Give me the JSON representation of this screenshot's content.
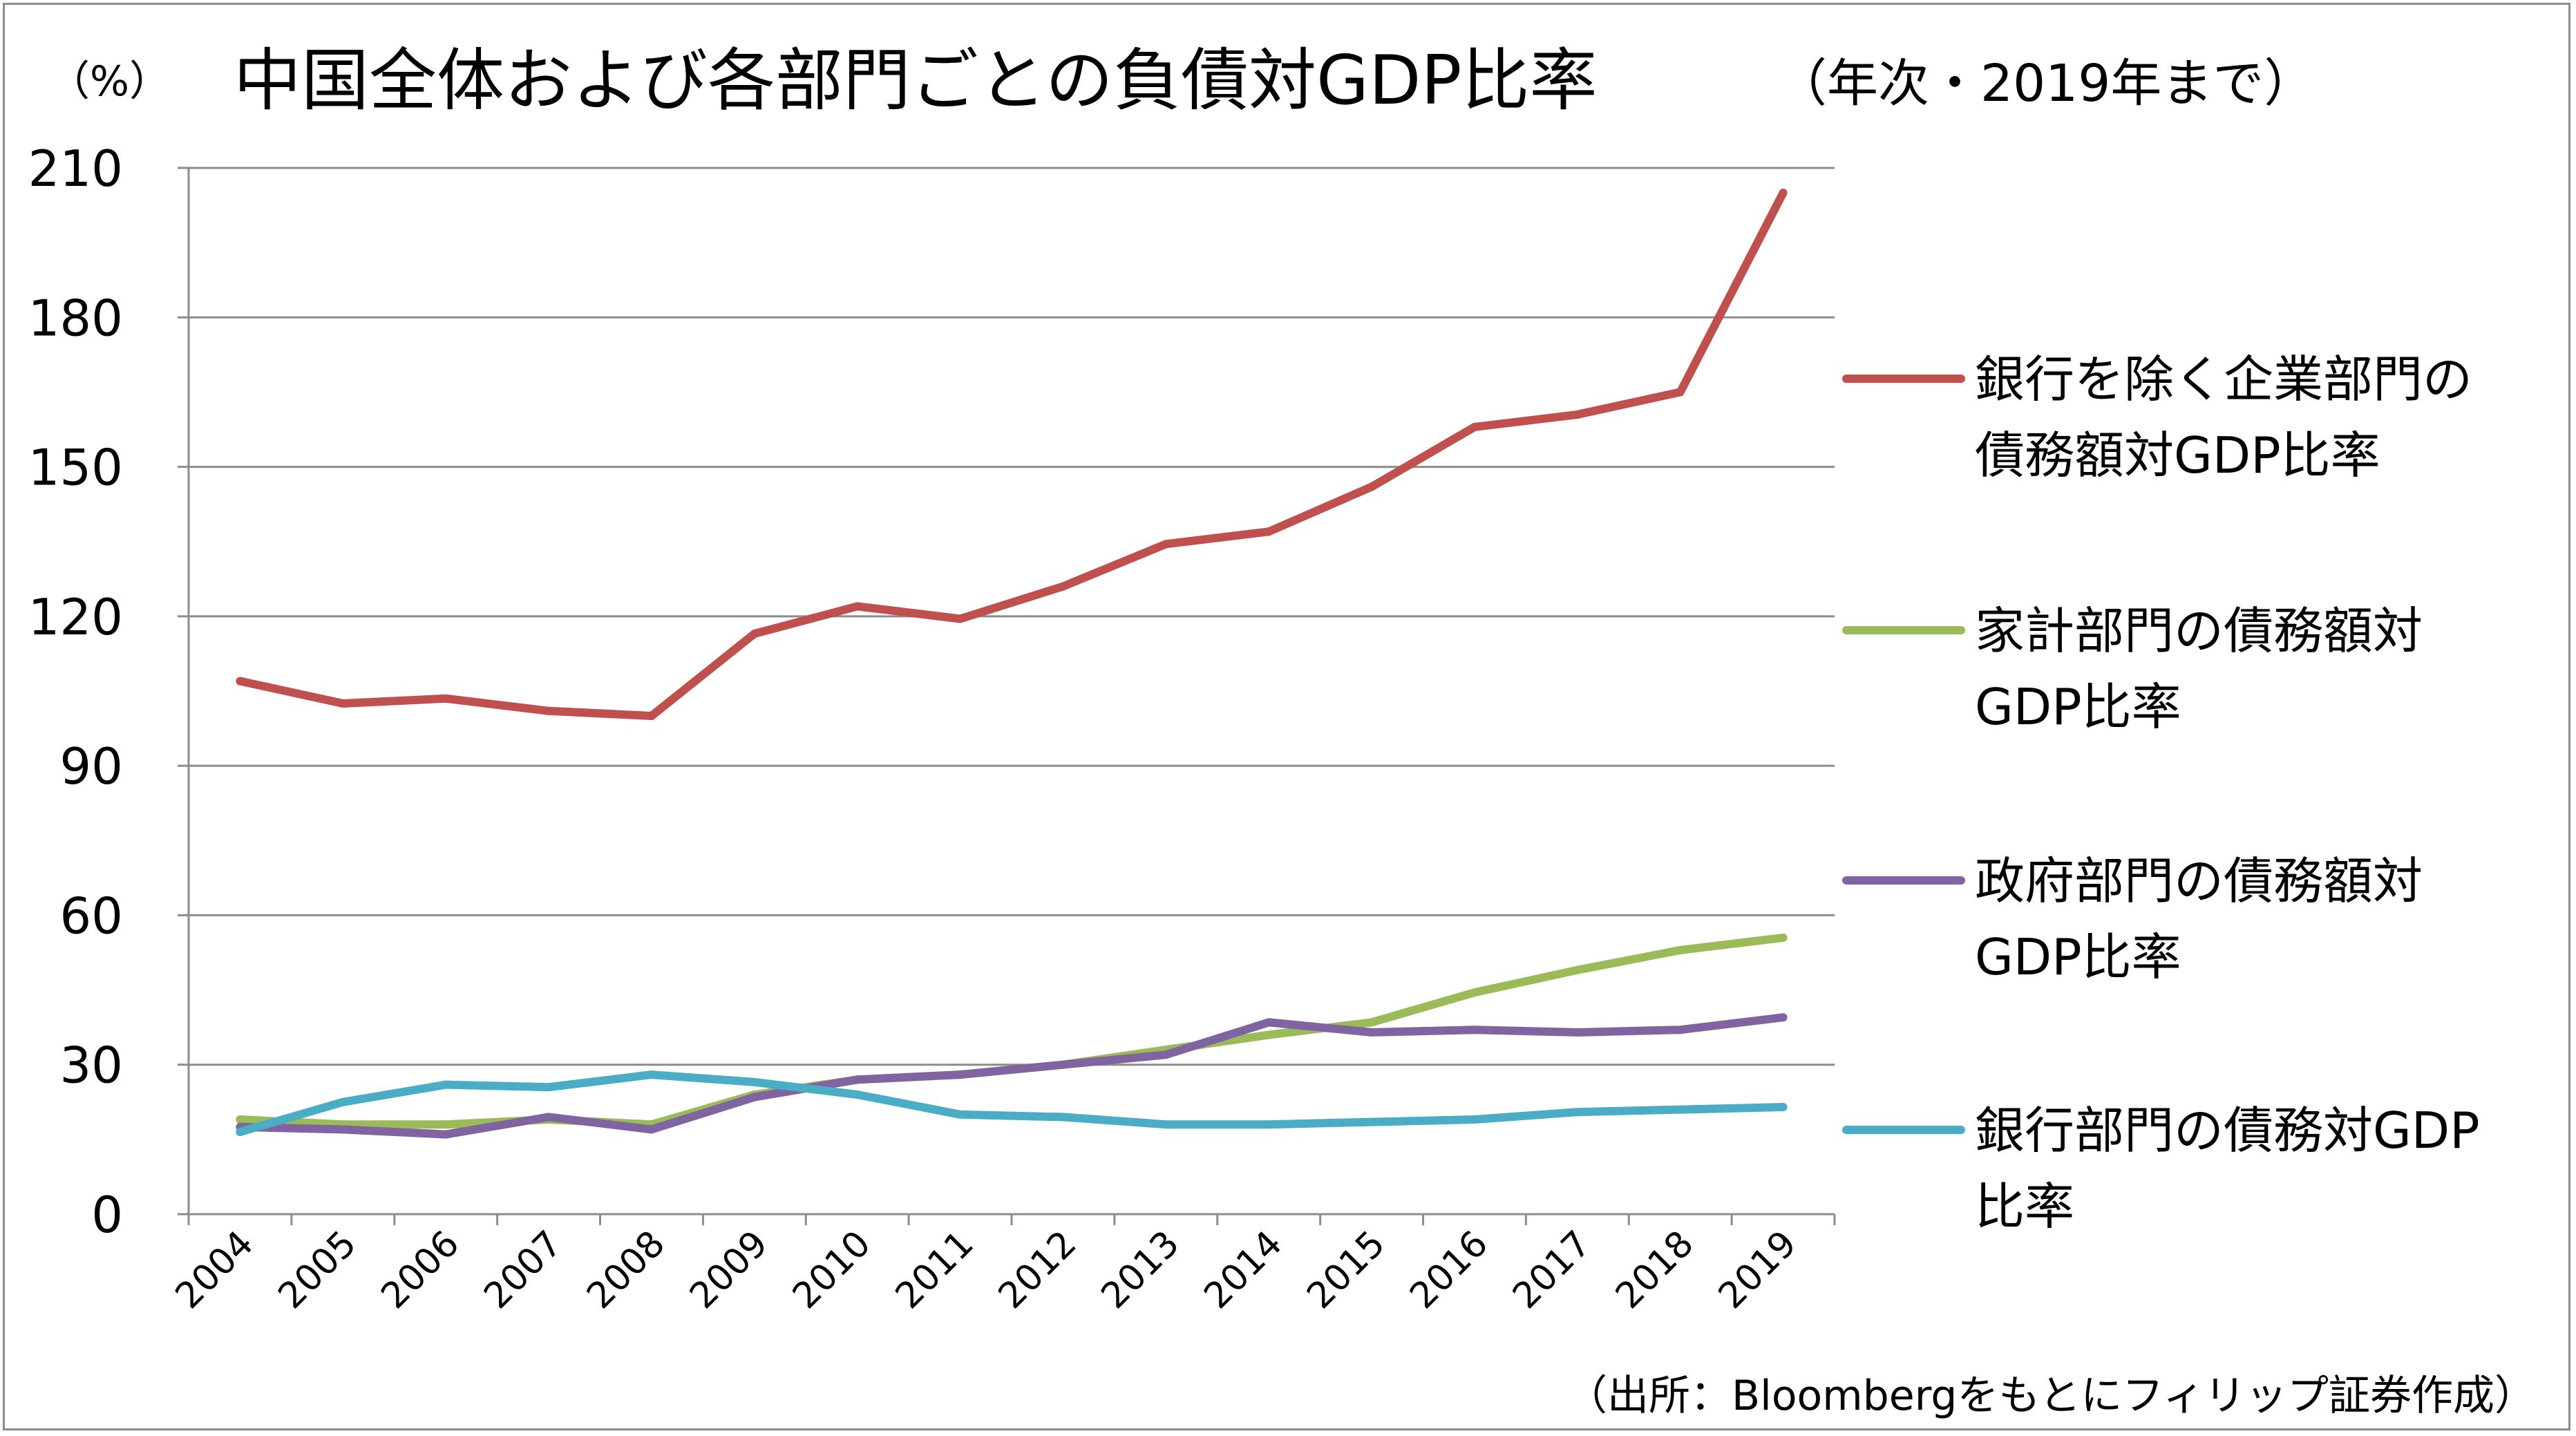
{
  "chart_data": {
    "type": "line",
    "title": "中国全体および各部門ごとの負債対GDP比率",
    "subtitle": "（年次・2019年まで）",
    "unit_label": "（%）",
    "ylim": [
      0,
      210
    ],
    "yticks": [
      "210",
      "180",
      "150",
      "120",
      "90",
      "60",
      "30",
      "0"
    ],
    "ytick_values": [
      210,
      180,
      150,
      120,
      90,
      60,
      30,
      0
    ],
    "categories": [
      "2004",
      "2005",
      "2006",
      "2007",
      "2008",
      "2009",
      "2010",
      "2011",
      "2012",
      "2013",
      "2014",
      "2015",
      "2016",
      "2017",
      "2018",
      "2019"
    ],
    "grid": true,
    "legend_position": "right",
    "series": [
      {
        "name_lines": [
          "銀行を除く企業部門の",
          "債務額対GDP比率"
        ],
        "color": "#c0504d",
        "values": [
          107,
          102.5,
          103.5,
          101,
          100,
          116.5,
          122,
          119.5,
          126,
          134.5,
          137,
          146,
          158,
          160.5,
          165,
          205
        ]
      },
      {
        "name_lines": [
          "家計部門の債務額対",
          "GDP比率"
        ],
        "color": "#9bbb59",
        "values": [
          19,
          18,
          18,
          19,
          18,
          24,
          27,
          28,
          30,
          33,
          36,
          38.5,
          44.5,
          49,
          53,
          55.5
        ]
      },
      {
        "name_lines": [
          "政府部門の債務額対",
          "GDP比率"
        ],
        "color": "#8064a2",
        "values": [
          17.5,
          17,
          16,
          19.5,
          17,
          23.5,
          27,
          28,
          30,
          32,
          38.5,
          36.5,
          37,
          36.5,
          37,
          39.5
        ]
      },
      {
        "name_lines": [
          "銀行部門の債務対GDP",
          "比率"
        ],
        "color": "#4bacc6",
        "values": [
          16.5,
          22.5,
          26,
          25.5,
          28,
          26.5,
          24,
          20,
          19.5,
          18,
          18,
          18.5,
          19,
          20.5,
          21,
          21.5
        ]
      }
    ],
    "source": "（出所：Bloombergをもとにフィリップ証券作成）"
  }
}
